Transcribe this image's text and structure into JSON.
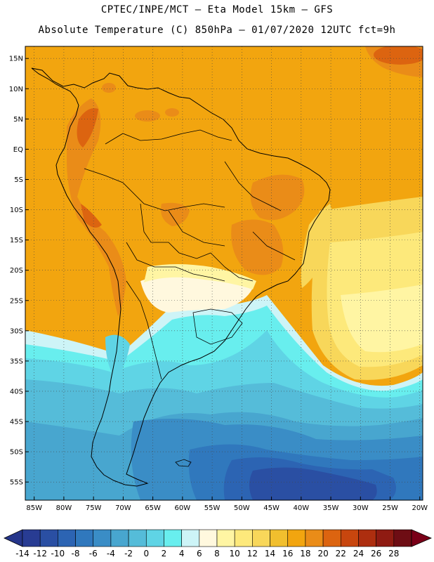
{
  "header": {
    "line1": "CPTEC/INPE/MCT –  Eta Model 15km – GFS",
    "line2": "Absolute Temperature (C) 850hPa – 01/07/2020 12UTC fct=9h"
  },
  "map": {
    "lat_ticks": [
      "15N",
      "10N",
      "5N",
      "EQ",
      "5S",
      "10S",
      "15S",
      "20S",
      "25S",
      "30S",
      "35S",
      "40S",
      "45S",
      "50S",
      "55S"
    ],
    "lon_ticks": [
      "85W",
      "80W",
      "75W",
      "70W",
      "65W",
      "60W",
      "55W",
      "50W",
      "45W",
      "40W",
      "35W",
      "30W",
      "25W",
      "20W"
    ],
    "grid": "dotted",
    "extent": {
      "lon_min": -86.5,
      "lon_max": -19.5,
      "lat_min": -58,
      "lat_max": 17
    },
    "background_color": "#f2a50f"
  },
  "colorbar": {
    "ticks": [
      "-14",
      "-12",
      "-10",
      "-8",
      "-6",
      "-4",
      "-2",
      "0",
      "2",
      "4",
      "6",
      "8",
      "10",
      "12",
      "14",
      "16",
      "18",
      "20",
      "22",
      "24",
      "26",
      "28"
    ],
    "colors": [
      "#283c93",
      "#2a4fa3",
      "#2c64b3",
      "#3078bd",
      "#3a8dc6",
      "#48a6cf",
      "#55bcd9",
      "#5fd4e5",
      "#68eeee",
      "#cdf4f7",
      "#fff8de",
      "#fff5a3",
      "#fde97b",
      "#f8d75a",
      "#f1bf2e",
      "#f2a50f",
      "#ea8c18",
      "#dc6410",
      "#c8460e",
      "#ad2e0f",
      "#8f1b12",
      "#6e0d14"
    ],
    "under_color": "#25358a",
    "over_color": "#7a0018"
  }
}
